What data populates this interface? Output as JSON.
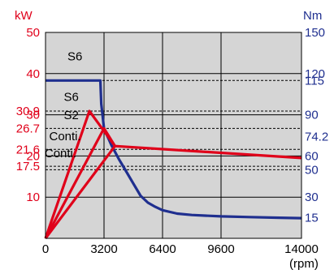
{
  "chart_data": {
    "type": "line",
    "title": "",
    "left_unit": "kW",
    "right_unit": "Nm",
    "x_unit": "(rpm)",
    "xlim": [
      0,
      14000
    ],
    "ylim_power": [
      0,
      50
    ],
    "ylim_torque": [
      0,
      150
    ],
    "grid": true,
    "colors": {
      "power": "#e0001a",
      "torque": "#1f2f8f",
      "plot_bg": "#d5d5d5"
    },
    "x_ticks": [
      {
        "value": 0,
        "label": "0"
      },
      {
        "value": 3200,
        "label": "3200"
      },
      {
        "value": 6400,
        "label": "6400"
      },
      {
        "value": 9600,
        "label": "9600"
      },
      {
        "value": 14000,
        "label": "14000"
      }
    ],
    "power_ticks": [
      {
        "value": 50,
        "label": "50"
      },
      {
        "value": 40,
        "label": "40"
      },
      {
        "value": 30.9,
        "label": "30.9"
      },
      {
        "value": 30,
        "label": "30"
      },
      {
        "value": 26.7,
        "label": "26.7"
      },
      {
        "value": 21.6,
        "label": "21.6"
      },
      {
        "value": 20,
        "label": "20"
      },
      {
        "value": 17.5,
        "label": "17.5"
      },
      {
        "value": 10,
        "label": "10"
      }
    ],
    "torque_ticks": [
      {
        "value": 150,
        "label": "150"
      },
      {
        "value": 120,
        "label": "120"
      },
      {
        "value": 115,
        "label": "115"
      },
      {
        "value": 90,
        "label": "90"
      },
      {
        "value": 74.2,
        "label": "74.2"
      },
      {
        "value": 60,
        "label": "60"
      },
      {
        "value": 50,
        "label": "50"
      },
      {
        "value": 30,
        "label": "30"
      },
      {
        "value": 15,
        "label": "15"
      }
    ],
    "reference_lines_power": [
      115,
      30.9,
      26.7,
      21.6,
      17.5
    ],
    "curve_labels": [
      {
        "text": "S6",
        "power": 43.2,
        "rpm": 1200
      },
      {
        "text": "S6",
        "power": 33.4,
        "rpm": 1000
      },
      {
        "text": "S2",
        "power": 28.9,
        "rpm": 1000
      },
      {
        "text": "Conti.",
        "power": 23.8,
        "rpm": 200
      },
      {
        "text": "Conti.",
        "power": 19.7,
        "rpm": -50
      }
    ],
    "series": [
      {
        "axis": "torque",
        "points": [
          [
            0,
            115
          ],
          [
            3000,
            115
          ],
          [
            3050,
            98
          ],
          [
            3200,
            80
          ],
          [
            3600,
            68
          ],
          [
            4000,
            58
          ],
          [
            4400,
            49
          ],
          [
            4800,
            40
          ],
          [
            5200,
            31
          ],
          [
            5600,
            26
          ],
          [
            6000,
            23
          ],
          [
            6400,
            20.5
          ],
          [
            7200,
            18
          ],
          [
            8000,
            17
          ],
          [
            9600,
            16
          ],
          [
            11200,
            15.5
          ],
          [
            12800,
            15
          ],
          [
            14000,
            14.7
          ]
        ]
      },
      {
        "axis": "power",
        "points": [
          [
            0,
            0
          ],
          [
            2400,
            30.9
          ],
          [
            3800,
            22.4
          ],
          [
            14000,
            19.5
          ]
        ]
      },
      {
        "axis": "power",
        "points": [
          [
            0,
            0
          ],
          [
            3200,
            26.7
          ],
          [
            3800,
            22.4
          ]
        ]
      },
      {
        "axis": "power",
        "points": [
          [
            0,
            0
          ],
          [
            3800,
            22.4
          ]
        ]
      }
    ]
  }
}
